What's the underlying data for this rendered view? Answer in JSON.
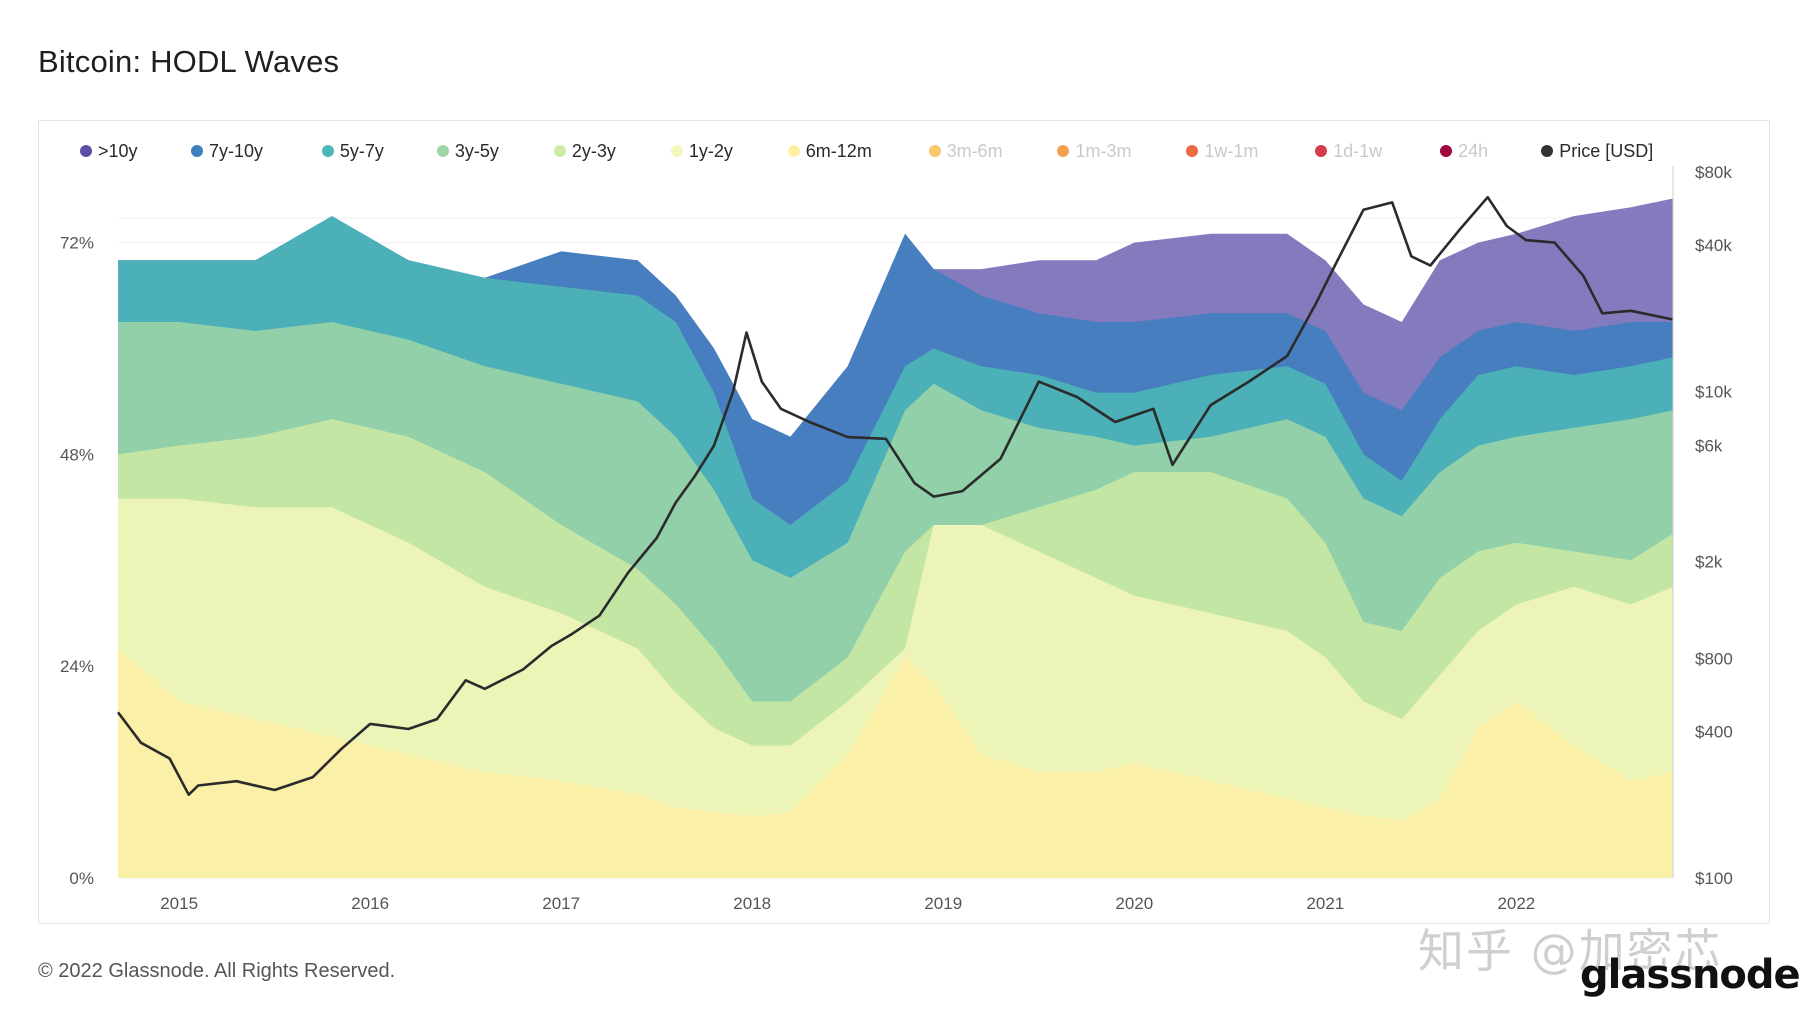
{
  "title": "Bitcoin: HODL Waves",
  "footer": "© 2022 Glassnode. All Rights Reserved.",
  "brand": "glassnode",
  "watermark_cn": "知乎 @加密芯",
  "watermark_chart": "glassnode",
  "chart_data": {
    "type": "area",
    "title": "Bitcoin: HODL Waves",
    "x_ticks": [
      "2015",
      "2016",
      "2017",
      "2018",
      "2019",
      "2020",
      "2021",
      "2022"
    ],
    "x_tick_values": [
      2015.0,
      2016.0,
      2017.0,
      2018.0,
      2019.0,
      2020.0,
      2021.0,
      2022.0
    ],
    "xlim": [
      2014.68,
      2022.82
    ],
    "ylim_left": [
      0,
      80
    ],
    "y_ticks_left": [
      "0%",
      "24%",
      "48%",
      "72%"
    ],
    "y_tick_values_left": [
      0,
      24,
      48,
      72
    ],
    "y_ticks_right": [
      "$100",
      "$400",
      "$800",
      "$2k",
      "$6k",
      "$10k",
      "$40k",
      "$80k"
    ],
    "y_tick_values_right": [
      100,
      400,
      800,
      2000,
      6000,
      10000,
      40000,
      80000
    ],
    "ylim_right_log": [
      100,
      80000
    ],
    "legend": [
      {
        "name": ">10y",
        "color": "#5b4fa8",
        "active": true
      },
      {
        "name": "7y-10y",
        "color": "#3c7fbf",
        "active": true
      },
      {
        "name": "5y-7y",
        "color": "#4cb8b5",
        "active": true
      },
      {
        "name": "3y-5y",
        "color": "#9fd6a8",
        "active": true
      },
      {
        "name": "2y-3y",
        "color": "#cdeaa3",
        "active": true
      },
      {
        "name": "1y-2y",
        "color": "#f5f6bb",
        "active": true
      },
      {
        "name": "6m-12m",
        "color": "#fdeea6",
        "active": true
      },
      {
        "name": "3m-6m",
        "color": "#f9c86b",
        "active": false
      },
      {
        "name": "1m-3m",
        "color": "#f4a04f",
        "active": false
      },
      {
        "name": "1w-1m",
        "color": "#ea6b43",
        "active": false
      },
      {
        "name": "1d-1w",
        "color": "#d43b4c",
        "active": false
      },
      {
        "name": "24h",
        "color": "#a0063f",
        "active": false
      },
      {
        "name": "Price [USD]",
        "color": "#333333",
        "active": true
      }
    ],
    "x": [
      2014.68,
      2015.0,
      2015.4,
      2015.8,
      2016.2,
      2016.6,
      2017.0,
      2017.4,
      2017.6,
      2017.8,
      2018.0,
      2018.2,
      2018.5,
      2018.8,
      2018.95,
      2019.2,
      2019.5,
      2019.8,
      2020.0,
      2020.4,
      2020.8,
      2021.0,
      2021.2,
      2021.4,
      2021.6,
      2021.8,
      2022.0,
      2022.3,
      2022.6,
      2022.82
    ],
    "series": [
      {
        "name": "6m-12m",
        "values": [
          26,
          20,
          18,
          16,
          14,
          12,
          11,
          9.5,
          8,
          7.5,
          7,
          7.5,
          14,
          25,
          22,
          14,
          12,
          12,
          13,
          11,
          9,
          8,
          7,
          6.5,
          9,
          17,
          20,
          15,
          11,
          12
        ]
      },
      {
        "name": "1y-2y",
        "values": [
          43,
          43,
          42,
          42,
          38,
          33,
          30,
          26,
          21,
          17,
          15,
          15,
          20,
          26,
          40,
          40,
          37,
          34,
          32,
          30,
          28,
          25,
          20,
          18,
          23,
          28,
          31,
          33,
          31,
          33
        ]
      },
      {
        "name": "2y-3y",
        "values": [
          48,
          49,
          50,
          52,
          50,
          46,
          40,
          35,
          31,
          26,
          20,
          20,
          25,
          37,
          40,
          40,
          42,
          44,
          46,
          46,
          43,
          38,
          29,
          28,
          34,
          37,
          38,
          37,
          36,
          39
        ]
      },
      {
        "name": "3y-5y",
        "values": [
          63,
          63,
          62,
          63,
          61,
          58,
          56,
          54,
          50,
          44,
          36,
          34,
          38,
          53,
          56,
          53,
          51,
          50,
          49,
          50,
          52,
          50,
          43,
          41,
          46,
          49,
          50,
          51,
          52,
          53
        ]
      },
      {
        "name": "5y-7y",
        "values": [
          70,
          70,
          70,
          75,
          70,
          68,
          67,
          66,
          63,
          55,
          43,
          40,
          45,
          58,
          60,
          58,
          57,
          55,
          55,
          57,
          58,
          56,
          48,
          45,
          52,
          57,
          58,
          57,
          58,
          59
        ]
      },
      {
        "name": "7y-10y",
        "values": [
          70,
          70,
          70,
          75,
          70,
          68,
          71,
          70,
          66,
          60,
          52,
          50,
          58,
          73,
          69,
          66,
          64,
          63,
          63,
          64,
          64,
          62,
          55,
          53,
          59,
          62,
          63,
          62,
          63,
          63
        ]
      },
      {
        "name": ">10y",
        "values": [
          70,
          70,
          70,
          75,
          70,
          68,
          71,
          70,
          66,
          60,
          52,
          50,
          58,
          73,
          69,
          69,
          70,
          70,
          72,
          73,
          73,
          70,
          65,
          63,
          70,
          72,
          73,
          75,
          76,
          77
        ]
      }
    ],
    "price_x": [
      2014.68,
      2014.8,
      2014.95,
      2015.05,
      2015.1,
      2015.3,
      2015.5,
      2015.7,
      2015.85,
      2016.0,
      2016.2,
      2016.35,
      2016.5,
      2016.6,
      2016.8,
      2016.95,
      2017.05,
      2017.2,
      2017.35,
      2017.5,
      2017.6,
      2017.7,
      2017.8,
      2017.9,
      2017.97,
      2018.05,
      2018.15,
      2018.3,
      2018.5,
      2018.7,
      2018.85,
      2018.95,
      2019.1,
      2019.3,
      2019.5,
      2019.7,
      2019.9,
      2020.1,
      2020.2,
      2020.4,
      2020.6,
      2020.8,
      2020.95,
      2021.05,
      2021.2,
      2021.35,
      2021.45,
      2021.55,
      2021.7,
      2021.85,
      2021.95,
      2022.05,
      2022.2,
      2022.35,
      2022.45,
      2022.6,
      2022.82
    ],
    "price_values": [
      480,
      360,
      310,
      220,
      240,
      250,
      230,
      260,
      340,
      430,
      410,
      450,
      650,
      600,
      720,
      900,
      1000,
      1200,
      1800,
      2500,
      3500,
      4500,
      6000,
      10000,
      17500,
      11000,
      8500,
      7500,
      6500,
      6400,
      4200,
      3700,
      3900,
      5300,
      11000,
      9500,
      7500,
      8500,
      5000,
      8800,
      11000,
      14000,
      23000,
      33000,
      56000,
      60000,
      36000,
      33000,
      46000,
      63000,
      48000,
      42000,
      41000,
      30000,
      21000,
      21500,
      19800
    ]
  }
}
